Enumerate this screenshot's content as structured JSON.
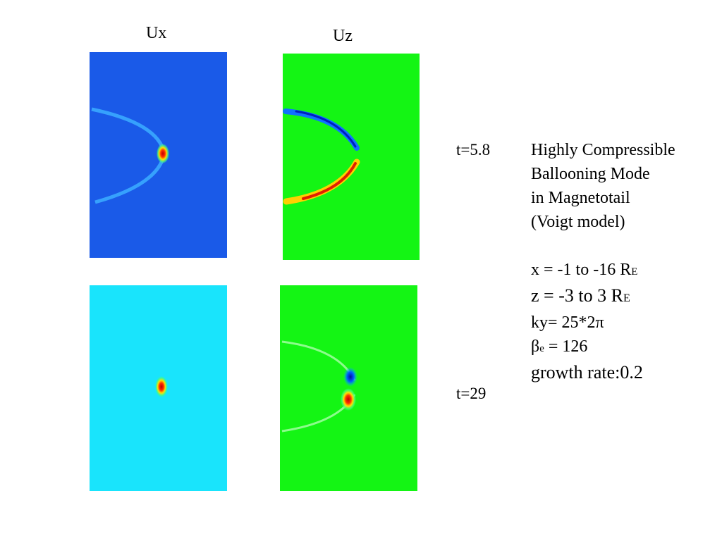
{
  "panels": {
    "ux_title": "Ux",
    "uz_title": "Uz"
  },
  "times": [
    "t=5.8",
    "t=29"
  ],
  "description": {
    "lines": [
      "Highly Compressible",
      "Ballooning Mode",
      "in Magnetotail",
      "(Voigt model)"
    ],
    "params": [
      {
        "text": "x = -1 to -16 R",
        "sub": "E"
      },
      {
        "text": "z = -3 to 3 R",
        "sub": "E"
      },
      {
        "text": "ky= 25*2π"
      },
      {
        "text": "β",
        "sub": "e",
        "after": " = 126"
      },
      {
        "text": "growth rate:0.2"
      }
    ]
  }
}
